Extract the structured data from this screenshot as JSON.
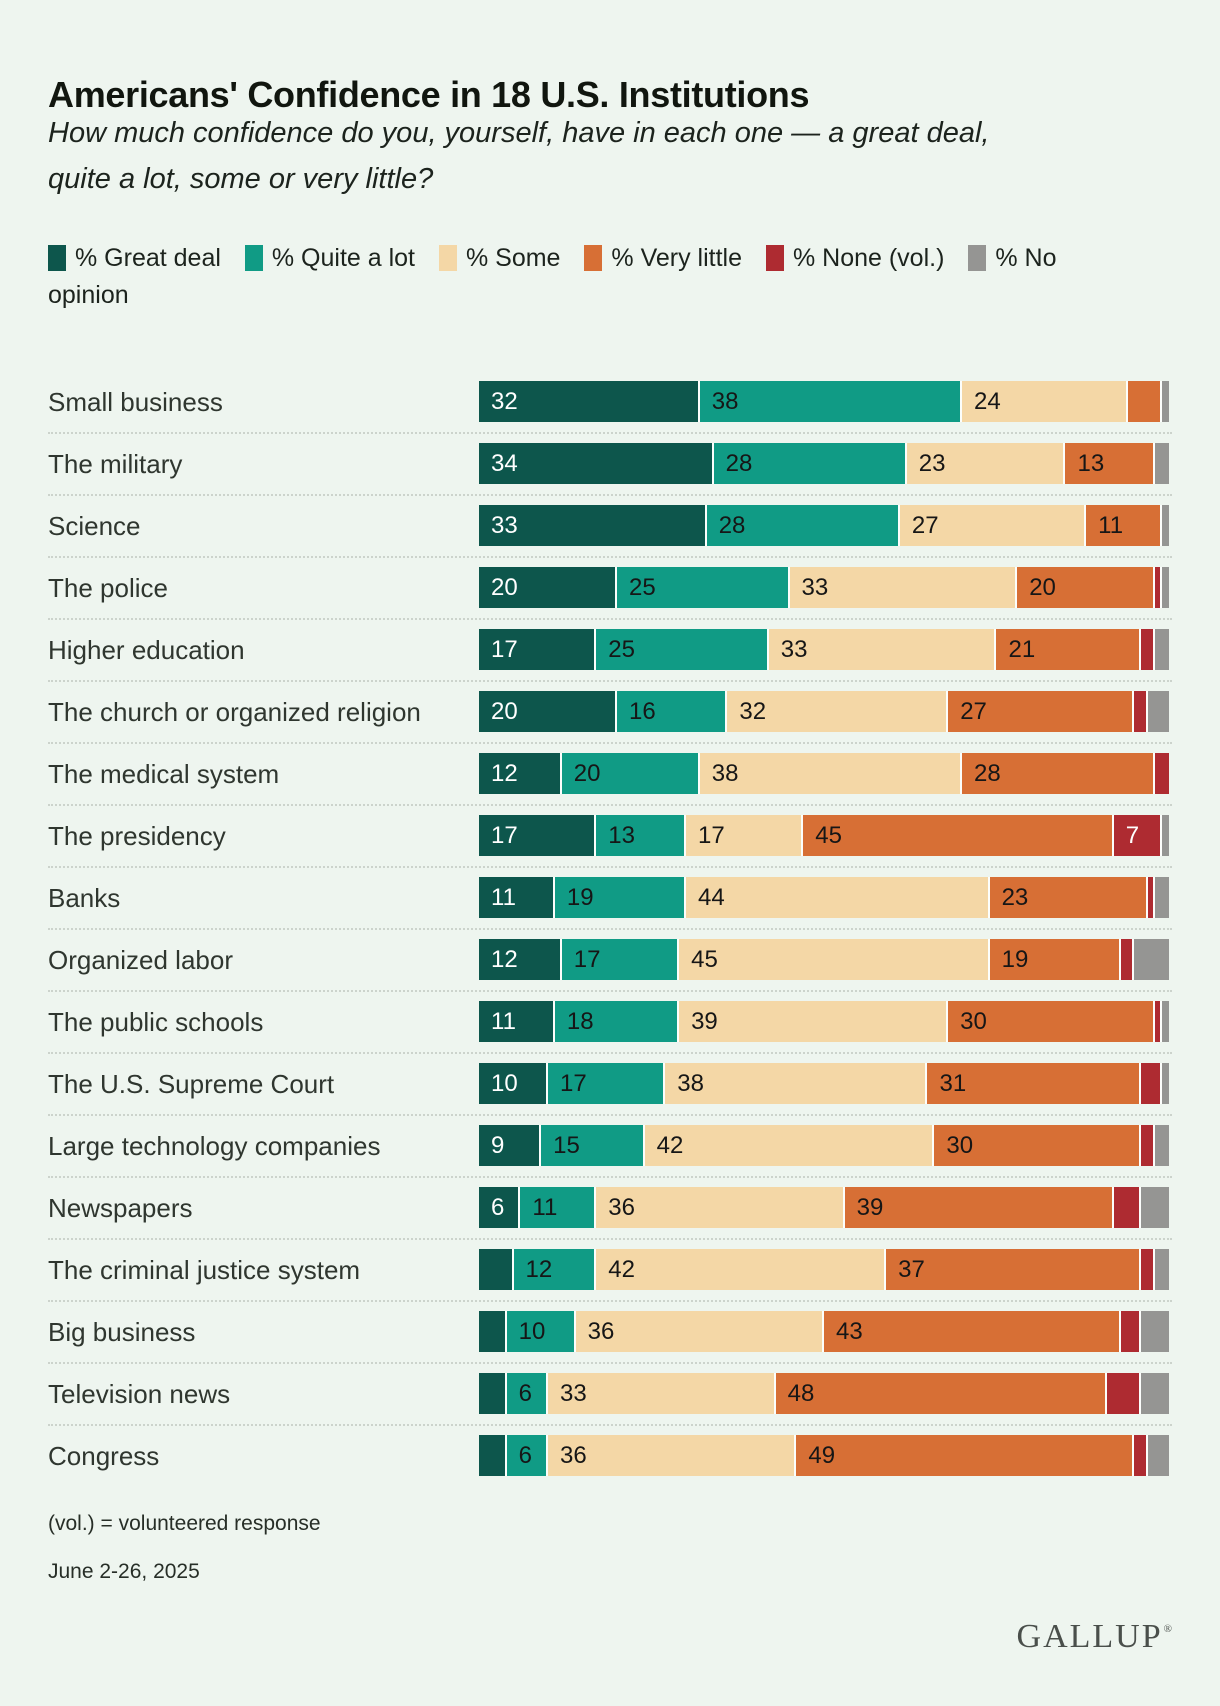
{
  "title": "Americans' Confidence in 18 U.S. Institutions",
  "subtitle": "How much confidence do you, yourself, have in each one — a great deal, quite a lot, some or very little?",
  "colors": {
    "background": "#eef5ef",
    "great_deal": "#0d564c",
    "quite_a_lot": "#109b85",
    "some": "#f4d7a6",
    "very_little": "#d76f35",
    "none_vol": "#ae2b31",
    "no_opinion": "#959593",
    "separator_dots": "#ccd3cc",
    "label_on_light": "#161616",
    "label_on_dark": "#ffffff"
  },
  "chart_data": {
    "type": "bar",
    "orientation": "horizontal",
    "stacked": true,
    "xlim": [
      0,
      100
    ],
    "grid": false,
    "legend_position": "top",
    "label_min_value": 6,
    "categories": [
      "Small business",
      "The military",
      "Science",
      "The police",
      "Higher education",
      "The church or organized religion",
      "The medical system",
      "The presidency",
      "Banks",
      "Organized labor",
      "The public schools",
      "The U.S. Supreme Court",
      "Large technology companies",
      "Newspapers",
      "The criminal justice system",
      "Big business",
      "Television news",
      "Congress"
    ],
    "series": [
      {
        "name": "% Great deal",
        "color": "#0d564c",
        "label_color": "#ffffff",
        "values": [
          32,
          34,
          33,
          20,
          17,
          20,
          12,
          17,
          11,
          12,
          11,
          10,
          9,
          6,
          5,
          4,
          4,
          4
        ]
      },
      {
        "name": "% Quite a lot",
        "color": "#109b85",
        "label_color": "#161616",
        "values": [
          38,
          28,
          28,
          25,
          25,
          16,
          20,
          13,
          19,
          17,
          18,
          17,
          15,
          11,
          12,
          10,
          6,
          6
        ]
      },
      {
        "name": "% Some",
        "color": "#f4d7a6",
        "label_color": "#161616",
        "values": [
          24,
          23,
          27,
          33,
          33,
          32,
          38,
          17,
          44,
          45,
          39,
          38,
          42,
          36,
          42,
          36,
          33,
          36
        ]
      },
      {
        "name": "% Very little",
        "color": "#d76f35",
        "label_color": "#161616",
        "values": [
          5,
          13,
          11,
          20,
          21,
          27,
          28,
          45,
          23,
          19,
          30,
          31,
          30,
          39,
          37,
          43,
          48,
          49
        ]
      },
      {
        "name": "% None (vol.)",
        "color": "#ae2b31",
        "label_color": "#ffffff",
        "values": [
          0,
          0,
          0,
          1,
          2,
          2,
          2,
          7,
          1,
          2,
          1,
          3,
          2,
          4,
          2,
          3,
          5,
          2
        ]
      },
      {
        "name": "% No opinion",
        "color": "#959593",
        "label_color": "#161616",
        "values": [
          1,
          2,
          1,
          1,
          2,
          3,
          0,
          1,
          2,
          5,
          1,
          1,
          2,
          4,
          2,
          4,
          4,
          3
        ]
      }
    ]
  },
  "footnotes": {
    "vol": "(vol.) = volunteered response",
    "date": "June 2-26, 2025"
  },
  "brand": {
    "name": "GALLUP",
    "registered": "®"
  }
}
